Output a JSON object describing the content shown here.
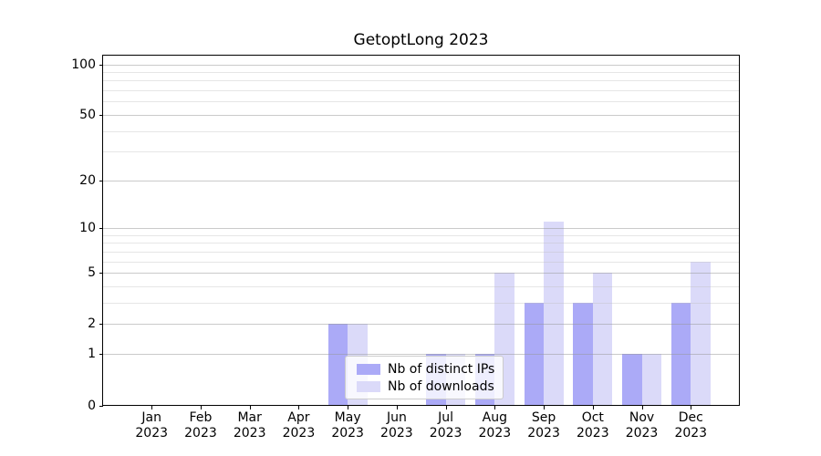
{
  "title": "GetoptLong 2023",
  "chart_data": {
    "type": "bar",
    "title": "GetoptLong 2023",
    "categories": [
      "Jan 2023",
      "Feb 2023",
      "Mar 2023",
      "Apr 2023",
      "May 2023",
      "Jun 2023",
      "Jul 2023",
      "Aug 2023",
      "Sep 2023",
      "Oct 2023",
      "Nov 2023",
      "Dec 2023"
    ],
    "month_labels": [
      "Jan",
      "Feb",
      "Mar",
      "Apr",
      "May",
      "Jun",
      "Jul",
      "Aug",
      "Sep",
      "Oct",
      "Nov",
      "Dec"
    ],
    "year_label": "2023",
    "series": [
      {
        "name": "Nb of distinct IPs",
        "color": "#abaaf7",
        "values": [
          0,
          0,
          0,
          0,
          2,
          0,
          1,
          1,
          3,
          3,
          1,
          3
        ]
      },
      {
        "name": "Nb of downloads",
        "color": "#dbdaf9",
        "values": [
          0,
          0,
          0,
          0,
          2,
          0,
          1,
          5,
          11,
          5,
          1,
          6
        ]
      }
    ],
    "y_axis": {
      "scale": "log10(1+value)",
      "tick_values": [
        0,
        1,
        2,
        5,
        10,
        20,
        50,
        100
      ],
      "minor_gridline_values": [
        3,
        4,
        6,
        7,
        8,
        9,
        30,
        40,
        60,
        70,
        80,
        90
      ],
      "range": [
        0,
        115
      ]
    },
    "xlabel": "",
    "ylabel": "",
    "grid": true,
    "legend_position": "lower-center"
  },
  "colors": {
    "background": "#ffffff",
    "spine": "#000000",
    "major_grid": "#c7c7c7",
    "minor_grid": "#ececec",
    "legend_border": "#cccccc"
  }
}
